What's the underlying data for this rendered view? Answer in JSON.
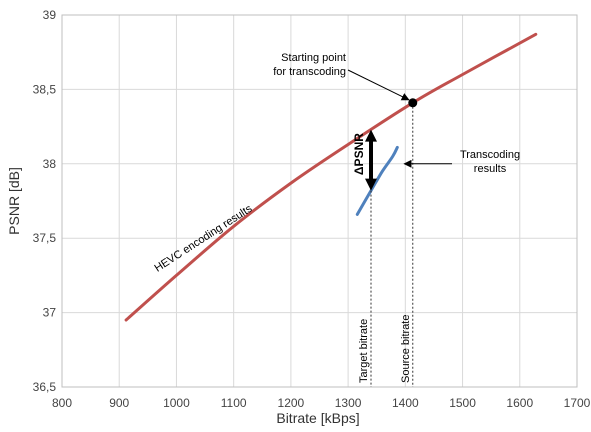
{
  "chart_data": {
    "type": "line",
    "xlabel": "Bitrate [kBps]",
    "ylabel": "PSNR [dB]",
    "xlim": [
      800,
      1700
    ],
    "ylim": [
      36.5,
      39
    ],
    "grid": true,
    "x_ticks": [
      {
        "value": 800,
        "label": "800"
      },
      {
        "value": 900,
        "label": "900"
      },
      {
        "value": 1000,
        "label": "1000"
      },
      {
        "value": 1100,
        "label": "1100"
      },
      {
        "value": 1200,
        "label": "1200"
      },
      {
        "value": 1300,
        "label": "1300"
      },
      {
        "value": 1400,
        "label": "1400"
      },
      {
        "value": 1500,
        "label": "1500"
      },
      {
        "value": 1600,
        "label": "1600"
      },
      {
        "value": 1700,
        "label": "1700"
      }
    ],
    "y_ticks": [
      {
        "value": 36.5,
        "label": "36,5"
      },
      {
        "value": 37,
        "label": "37"
      },
      {
        "value": 37.5,
        "label": "37,5"
      },
      {
        "value": 38,
        "label": "38"
      },
      {
        "value": 38.5,
        "label": "38,5"
      },
      {
        "value": 39,
        "label": "39"
      }
    ],
    "series": [
      {
        "name": "HEVC encoding results",
        "color": "#c0504d",
        "x": [
          912,
          1000,
          1100,
          1200,
          1300,
          1413,
          1500,
          1628
        ],
        "y": [
          36.95,
          37.25,
          37.58,
          37.87,
          38.13,
          38.41,
          38.6,
          38.87
        ]
      },
      {
        "name": "Transcoding results",
        "color": "#4f81bd",
        "x": [
          1316,
          1340,
          1360,
          1378,
          1386
        ],
        "y": [
          37.66,
          37.82,
          37.95,
          38.05,
          38.11
        ]
      }
    ],
    "annotations": {
      "hevc_label": {
        "text": "HEVC encoding results",
        "x": 1050,
        "y": 37.48
      },
      "transcoding_label": {
        "text": "Transcoding results",
        "at_x": 1388,
        "at_y": 38.0
      },
      "starting_point": {
        "text_lines": [
          "Starting point",
          "for transcoding"
        ],
        "x": 1413,
        "y": 38.41
      },
      "delta_psnr": {
        "text": "ΔPSNR",
        "x": 1340,
        "y_from": 37.82,
        "y_to": 38.23
      },
      "target_bitrate": {
        "text": "Target bitrate",
        "x": 1340
      },
      "source_bitrate": {
        "text": "Source bitrate",
        "x": 1413
      }
    }
  }
}
